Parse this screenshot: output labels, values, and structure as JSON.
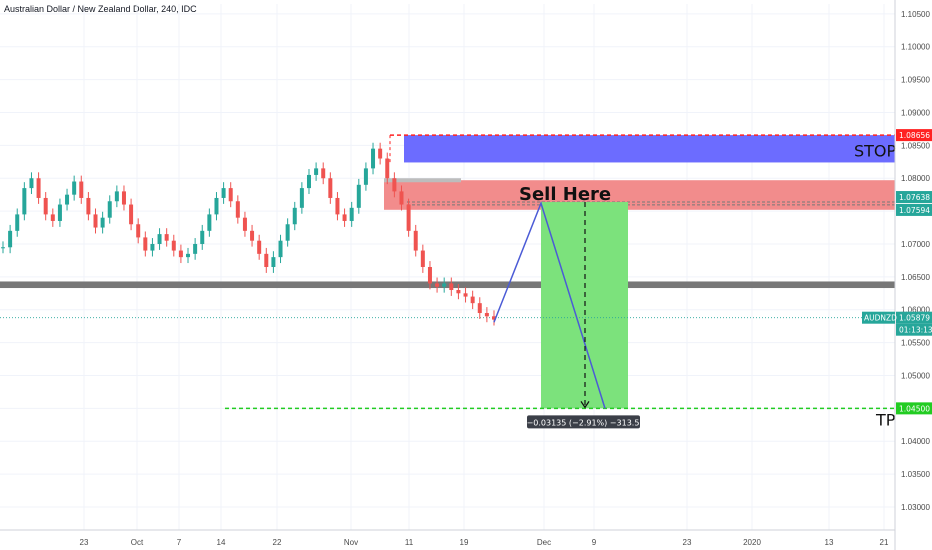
{
  "header": {
    "title": "Australian Dollar / New Zealand Dollar, 240, IDC"
  },
  "colors": {
    "up": "#26a69a",
    "down": "#ef5350",
    "stop_zone": "#6c6cff",
    "entry_zone": "#f28c8c",
    "profit_zone": "#7ce27c",
    "tp_line": "#22cc22",
    "stop_line": "#ff2222",
    "support_zone": "#777777",
    "path_line": "#4b5bd6",
    "price_label_bg": "#26a69a"
  },
  "annotations": {
    "stop_text": "STOP",
    "sell_text": "Sell Here",
    "tp_text": "TP",
    "measure_text": "−0.03135 (−2.91%) −313.5"
  },
  "price_scale": {
    "ticks": [
      "1.10500",
      "1.10000",
      "1.09500",
      "1.09000",
      "1.08500",
      "1.08000",
      "1.07500",
      "1.07000",
      "1.06500",
      "1.06000",
      "1.05500",
      "1.05000",
      "1.04500",
      "1.04000",
      "1.03500",
      "1.03000"
    ],
    "tick_values": [
      1.105,
      1.1,
      1.095,
      1.09,
      1.085,
      1.08,
      1.075,
      1.07,
      1.065,
      1.06,
      1.055,
      1.05,
      1.045,
      1.04,
      1.035,
      1.03
    ],
    "labels": [
      {
        "text": "1.08656",
        "value": 1.08656,
        "color": "#ff2222"
      },
      {
        "text": "1.07638",
        "value": 1.07638,
        "color": "#26a69a"
      },
      {
        "text": "1.07594",
        "value": 1.07594,
        "color": "#26a69a"
      },
      {
        "text": "AUDNZD",
        "value": 1.05879,
        "color": "#26a69a"
      },
      {
        "text": "1.05879",
        "value": 1.05879,
        "color": "#26a69a"
      },
      {
        "text": "01:13:13",
        "value": 1.0572,
        "color": "#26a69a"
      },
      {
        "text": "1.04500",
        "value": 1.045,
        "color": "#22cc22"
      }
    ]
  },
  "time_scale": {
    "ticks": [
      "23",
      "Oct",
      "7",
      "14",
      "22",
      "Nov",
      "11",
      "19",
      "Dec",
      "9",
      "23",
      "2020",
      "13",
      "21"
    ]
  },
  "chart_data": {
    "type": "candlestick",
    "title": "Australian Dollar / New Zealand Dollar, 240, IDC",
    "y_range": [
      1.0265,
      1.1065
    ],
    "grid": true,
    "last_price": 1.05879,
    "levels": {
      "stop": 1.08656,
      "stop_zone": [
        1.0824,
        1.08656
      ],
      "entry_zone": [
        1.0752,
        1.0797
      ],
      "entry_lines": [
        1.07638,
        1.07594
      ],
      "support_zone": [
        1.0633,
        1.0643
      ],
      "take_profit": 1.045
    },
    "price_path": [
      {
        "label": "Nov 22",
        "price": 1.0581
      },
      {
        "label": "Dec",
        "price": 1.0762
      },
      {
        "label": "Dec 9",
        "price": 1.045
      }
    ],
    "measure": {
      "change": -0.03135,
      "percent": -2.91,
      "pips": -313.5
    },
    "series": [
      {
        "values": [
          1.0695,
          1.072,
          1.0745,
          1.0785,
          1.08,
          1.077,
          1.0745,
          1.0735,
          1.076,
          1.0775,
          1.0795,
          1.077,
          1.0745,
          1.0725,
          1.074,
          1.0765,
          1.078,
          1.076,
          1.073,
          1.071,
          1.069,
          1.07,
          1.0715,
          1.0705,
          1.069,
          1.068,
          1.0685,
          1.07,
          1.072,
          1.0745,
          1.077,
          1.0785,
          1.0765,
          1.074,
          1.072,
          1.0705,
          1.0685,
          1.0665,
          1.068,
          1.0705,
          1.073,
          1.0755,
          1.0785,
          1.0805,
          1.0815,
          1.08,
          1.077,
          1.0745,
          1.0735,
          1.0755,
          1.079,
          1.0815,
          1.0845,
          1.083,
          1.08,
          1.078,
          1.076,
          1.072,
          1.069,
          1.0665,
          1.064,
          1.0635,
          1.064,
          1.063,
          1.0625,
          1.062,
          1.061,
          1.0595,
          1.059,
          1.0585
        ]
      }
    ]
  }
}
